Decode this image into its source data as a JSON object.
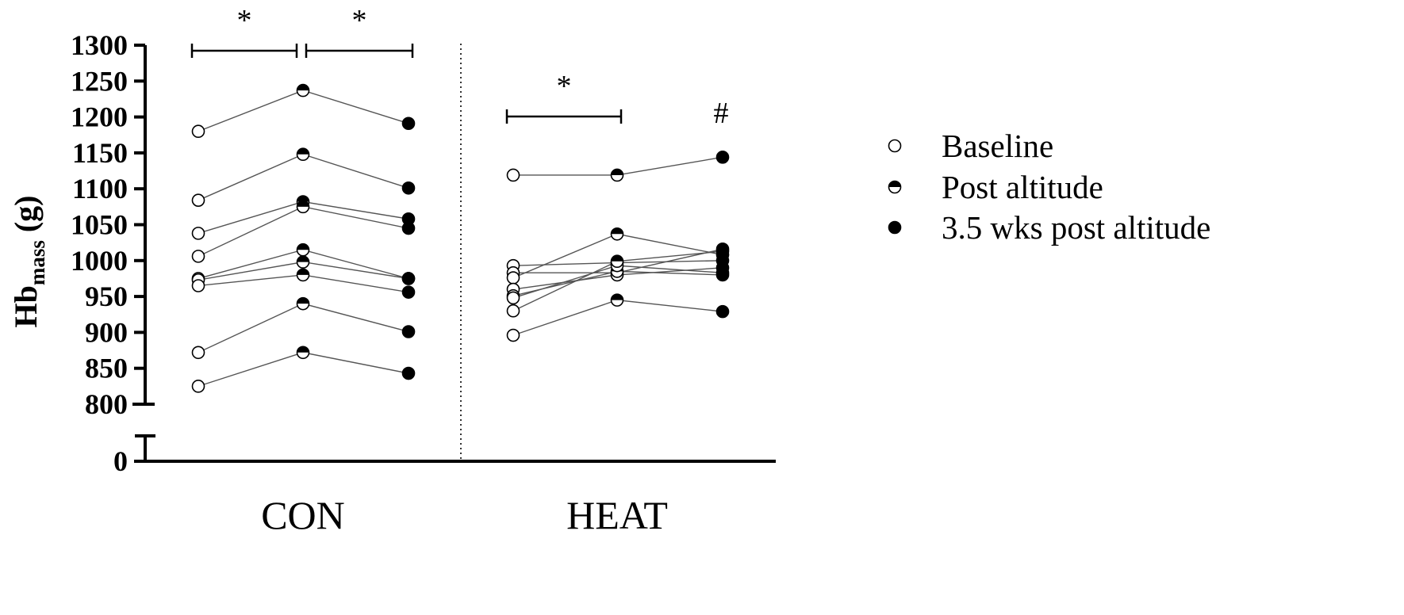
{
  "chart_data": {
    "type": "scatter",
    "ylabel": {
      "main": "Hb",
      "subscript": "mass",
      "unit": " (g)"
    },
    "y_ticks": [
      "1300",
      "1250",
      "1200",
      "1150",
      "1100",
      "1050",
      "1000",
      "950",
      "900",
      "850",
      "800",
      "0"
    ],
    "y_axis_break": true,
    "ylim": [
      800,
      1300
    ],
    "categories": [
      "CON",
      "HEAT"
    ],
    "timepoints": [
      "Baseline",
      "Post altitude",
      "3.5 wks post altitude"
    ],
    "legend": [
      {
        "label": "Baseline",
        "marker": "open-circle"
      },
      {
        "label": "Post altitude",
        "marker": "half-filled-circle"
      },
      {
        "label": "3.5 wks post altitude",
        "marker": "filled-circle"
      }
    ],
    "legend_placement": "right",
    "groups": [
      {
        "name": "CON",
        "participants": [
          [
            1180,
            1237,
            1191
          ],
          [
            1084,
            1148,
            1101
          ],
          [
            1038,
            1082,
            1058
          ],
          [
            1006,
            1075,
            1045
          ],
          [
            975,
            1015,
            975
          ],
          [
            973,
            998,
            975
          ],
          [
            965,
            980,
            956
          ],
          [
            872,
            940,
            901
          ],
          [
            825,
            872,
            843
          ]
        ],
        "significance": [
          {
            "from": 0,
            "to": 1,
            "symbol": "*"
          },
          {
            "from": 1,
            "to": 2,
            "symbol": "*"
          }
        ]
      },
      {
        "name": "HEAT",
        "participants": [
          [
            1119,
            1119,
            1144
          ],
          [
            993,
            997,
            1000
          ],
          [
            983,
            983,
            1016
          ],
          [
            976,
            1037,
            1008
          ],
          [
            960,
            980,
            990
          ],
          [
            951,
            985,
            980
          ],
          [
            948,
            993,
            983
          ],
          [
            930,
            999,
            1013
          ],
          [
            896,
            945,
            929
          ]
        ],
        "significance": [
          {
            "from": 0,
            "to": 1,
            "symbol": "*"
          }
        ],
        "annotation_timepoint": 2,
        "annotation_symbol": "#"
      }
    ]
  }
}
